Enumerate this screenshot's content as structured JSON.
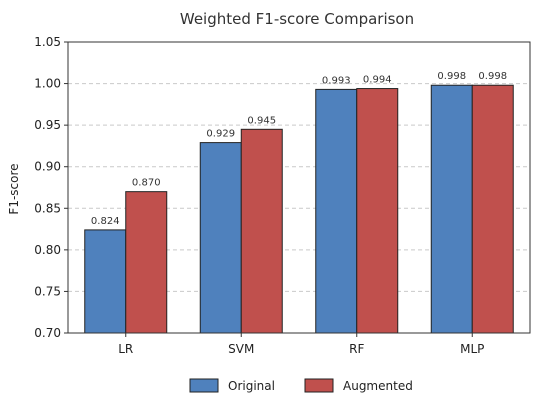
{
  "chart_data": {
    "type": "bar",
    "title": "Weighted F1-score Comparison",
    "xlabel": "",
    "ylabel": "F1-score",
    "categories": [
      "LR",
      "SVM",
      "RF",
      "MLP"
    ],
    "series": [
      {
        "name": "Original",
        "color": "#4F81BD",
        "values": [
          0.824,
          0.929,
          0.993,
          0.998
        ],
        "labels": [
          "0.824",
          "0.929",
          "0.993",
          "0.998"
        ]
      },
      {
        "name": "Augmented",
        "color": "#C0504D",
        "values": [
          0.87,
          0.945,
          0.994,
          0.998
        ],
        "labels": [
          "0.870",
          "0.945",
          "0.994",
          "0.998"
        ]
      }
    ],
    "ylim": [
      0.7,
      1.05
    ],
    "yticks": [
      0.7,
      0.75,
      0.8,
      0.85,
      0.9,
      0.95,
      1.0,
      1.05
    ],
    "ytick_labels": [
      "0.70",
      "0.75",
      "0.80",
      "0.85",
      "0.90",
      "0.95",
      "1.00",
      "1.05"
    ],
    "grid": true,
    "grid_style": "dashed-horizontal",
    "legend_position": "bottom-center"
  }
}
